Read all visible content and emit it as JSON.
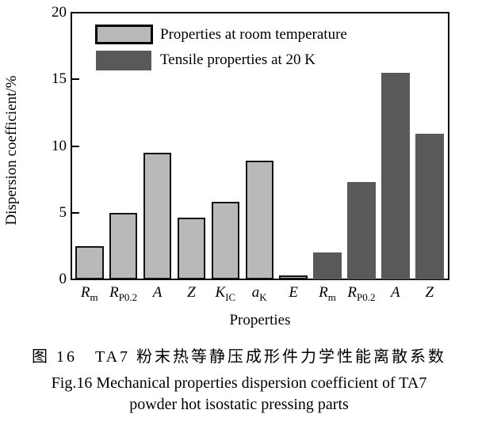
{
  "figure": {
    "caption_zh": "图 16　TA7 粉末热等静压成形件力学性能离散系数",
    "caption_en_line1": "Fig.16 Mechanical properties dispersion coefficient of TA7",
    "caption_en_line2": "powder hot isostatic pressing parts"
  },
  "chart_data": {
    "type": "bar",
    "title": "",
    "xlabel": "Properties",
    "ylabel": "Dispersion coefficient/%",
    "ylim": [
      0,
      20
    ],
    "yticks": [
      0,
      5,
      10,
      15,
      20
    ],
    "grid": false,
    "legend_position": "top-left-inside",
    "series_meta": {
      "room": {
        "name": "Properties at room temperature",
        "color": "#b9b9b9",
        "border_color": "#141414"
      },
      "cryo": {
        "name": "Tensile properties at 20 K",
        "color": "#595959"
      }
    },
    "bars": [
      {
        "main": "R",
        "sub": "m",
        "value": 2.5,
        "series": "room"
      },
      {
        "main": "R",
        "sub": "P0.2",
        "value": 5.0,
        "series": "room"
      },
      {
        "main": "A",
        "sub": "",
        "value": 9.5,
        "series": "room"
      },
      {
        "main": "Z",
        "sub": "",
        "value": 4.6,
        "series": "room"
      },
      {
        "main": "K",
        "sub": "IC",
        "value": 5.8,
        "series": "room"
      },
      {
        "main": "a",
        "sub": "K",
        "value": 8.9,
        "series": "room"
      },
      {
        "main": "E",
        "sub": "",
        "value": 0.3,
        "series": "room"
      },
      {
        "main": "R",
        "sub": "m",
        "value": 2.0,
        "series": "cryo"
      },
      {
        "main": "R",
        "sub": "P0.2",
        "value": 7.3,
        "series": "cryo"
      },
      {
        "main": "A",
        "sub": "",
        "value": 15.5,
        "series": "cryo"
      },
      {
        "main": "Z",
        "sub": "",
        "value": 10.9,
        "series": "cryo"
      }
    ]
  }
}
